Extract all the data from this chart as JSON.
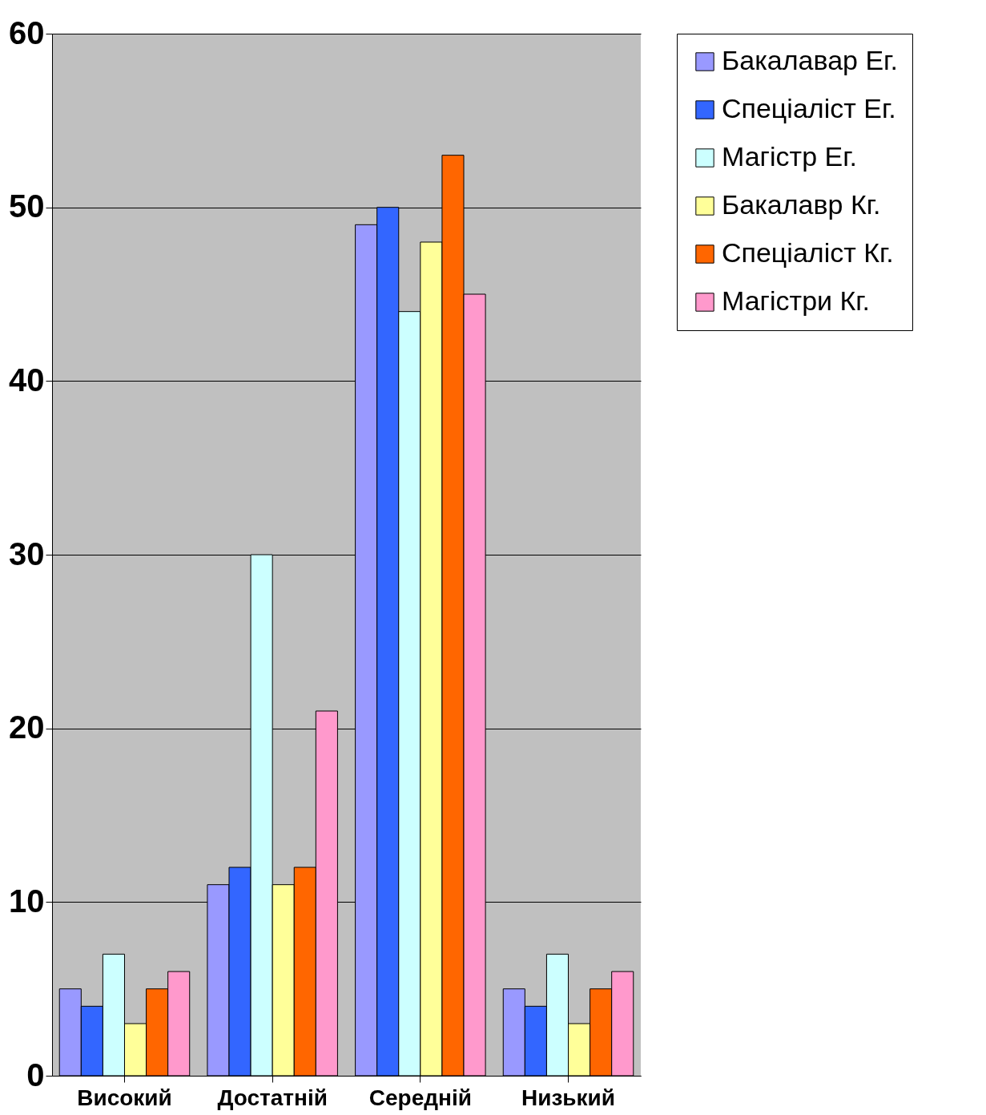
{
  "chart_data": {
    "type": "bar",
    "categories": [
      "Високий",
      "Достатній",
      "Середній",
      "Низький"
    ],
    "series": [
      {
        "name": "Бакалавар Ег.",
        "color": "#9999ff",
        "values": [
          5,
          11,
          49,
          5
        ]
      },
      {
        "name": "Спеціаліст Ег.",
        "color": "#3366ff",
        "values": [
          4,
          12,
          50,
          4
        ]
      },
      {
        "name": "Магістр Ег.",
        "color": "#ccffff",
        "values": [
          7,
          30,
          44,
          7
        ]
      },
      {
        "name": "Бакалавр Кг.",
        "color": "#ffff99",
        "values": [
          3,
          11,
          48,
          3
        ]
      },
      {
        "name": "Спеціаліст Кг.",
        "color": "#ff6600",
        "values": [
          5,
          12,
          53,
          5
        ]
      },
      {
        "name": "Магістри Кг.",
        "color": "#ff99cc",
        "values": [
          6,
          21,
          45,
          6
        ]
      }
    ],
    "ylim": [
      0,
      60
    ],
    "yticks": [
      0,
      10,
      20,
      30,
      40,
      50,
      60
    ],
    "grid": "y",
    "legend": "right"
  }
}
